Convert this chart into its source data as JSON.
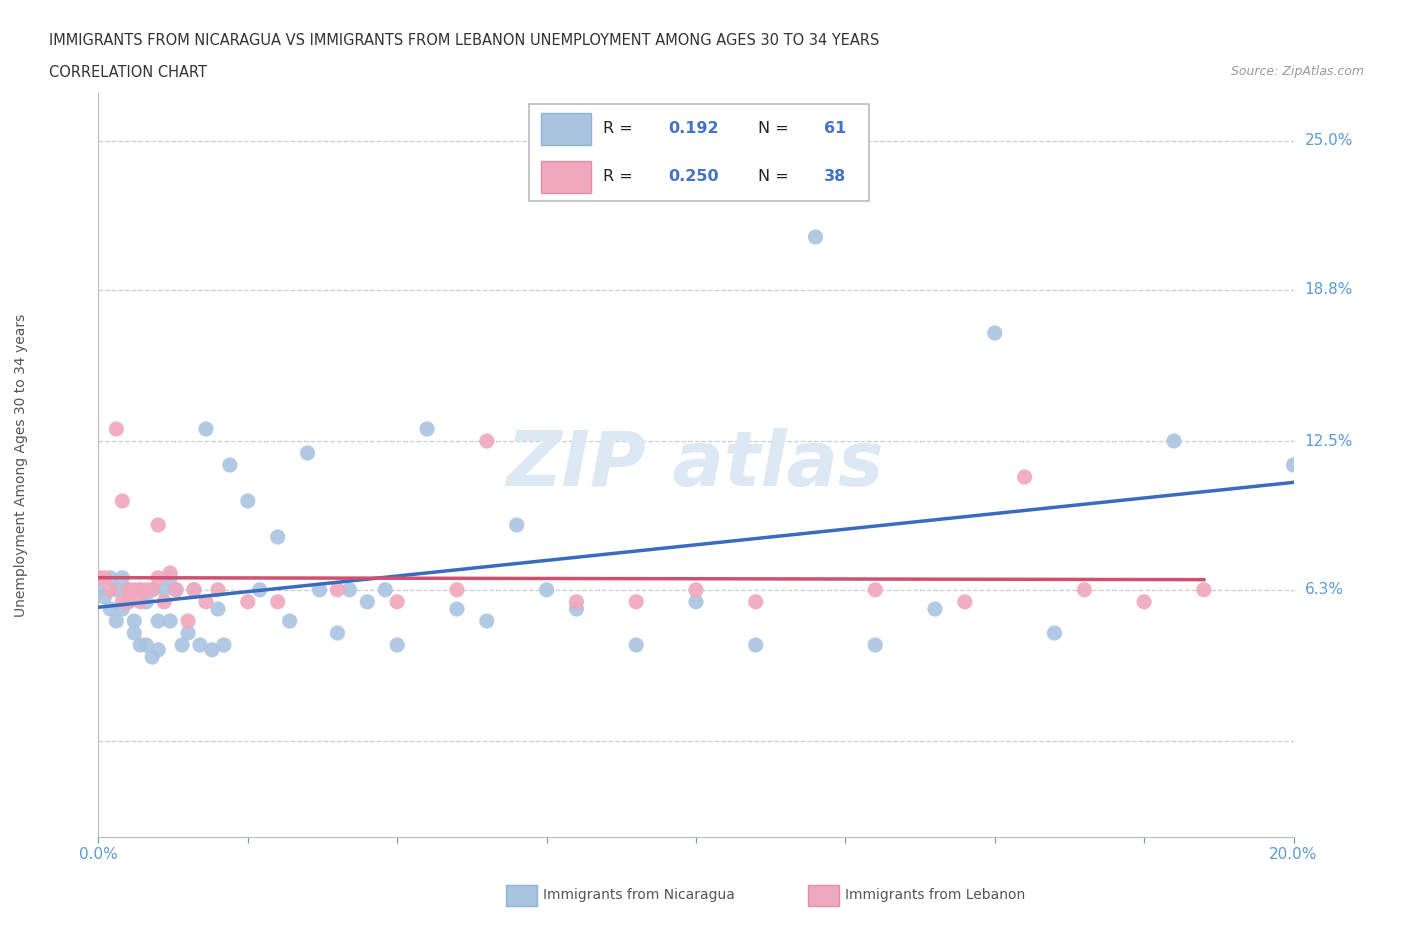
{
  "title_line1": "IMMIGRANTS FROM NICARAGUA VS IMMIGRANTS FROM LEBANON UNEMPLOYMENT AMONG AGES 30 TO 34 YEARS",
  "title_line2": "CORRELATION CHART",
  "source": "Source: ZipAtlas.com",
  "ylabel": "Unemployment Among Ages 30 to 34 years",
  "xlim": [
    0.0,
    0.2
  ],
  "ylim": [
    -0.04,
    0.27
  ],
  "ytick_positions": [
    0.0,
    0.063,
    0.125,
    0.188,
    0.25
  ],
  "ytick_labels": [
    "",
    "6.3%",
    "12.5%",
    "18.8%",
    "25.0%"
  ],
  "grid_color": "#cccccc",
  "nicaragua_color": "#aac4e0",
  "lebanon_color": "#f0a8bc",
  "nicaragua_line_color": "#3a6bbf",
  "lebanon_line_color": "#d05070",
  "nicaragua_R": 0.192,
  "nicaragua_N": 61,
  "lebanon_R": 0.25,
  "lebanon_N": 38,
  "nicaragua_x": [
    0.0,
    0.0,
    0.001,
    0.002,
    0.002,
    0.003,
    0.003,
    0.004,
    0.004,
    0.005,
    0.005,
    0.006,
    0.006,
    0.007,
    0.007,
    0.008,
    0.008,
    0.009,
    0.009,
    0.01,
    0.01,
    0.011,
    0.012,
    0.012,
    0.013,
    0.014,
    0.015,
    0.016,
    0.017,
    0.018,
    0.019,
    0.02,
    0.021,
    0.022,
    0.025,
    0.027,
    0.03,
    0.032,
    0.035,
    0.037,
    0.04,
    0.042,
    0.045,
    0.048,
    0.05,
    0.055,
    0.06,
    0.065,
    0.07,
    0.075,
    0.08,
    0.09,
    0.1,
    0.11,
    0.12,
    0.13,
    0.14,
    0.15,
    0.16,
    0.18,
    0.2
  ],
  "nicaragua_y": [
    0.068,
    0.063,
    0.06,
    0.055,
    0.068,
    0.05,
    0.063,
    0.055,
    0.068,
    0.058,
    0.063,
    0.05,
    0.045,
    0.04,
    0.063,
    0.04,
    0.058,
    0.035,
    0.063,
    0.038,
    0.05,
    0.063,
    0.068,
    0.05,
    0.063,
    0.04,
    0.045,
    0.063,
    0.04,
    0.13,
    0.038,
    0.055,
    0.04,
    0.115,
    0.1,
    0.063,
    0.085,
    0.05,
    0.12,
    0.063,
    0.045,
    0.063,
    0.058,
    0.063,
    0.04,
    0.13,
    0.055,
    0.05,
    0.09,
    0.063,
    0.055,
    0.04,
    0.058,
    0.04,
    0.21,
    0.04,
    0.055,
    0.17,
    0.045,
    0.125,
    0.115
  ],
  "lebanon_x": [
    0.0,
    0.001,
    0.002,
    0.003,
    0.004,
    0.004,
    0.005,
    0.005,
    0.006,
    0.007,
    0.007,
    0.008,
    0.009,
    0.01,
    0.01,
    0.011,
    0.012,
    0.013,
    0.015,
    0.016,
    0.018,
    0.02,
    0.025,
    0.03,
    0.04,
    0.05,
    0.06,
    0.065,
    0.08,
    0.09,
    0.1,
    0.11,
    0.13,
    0.145,
    0.155,
    0.165,
    0.175,
    0.185
  ],
  "lebanon_y": [
    0.068,
    0.068,
    0.063,
    0.13,
    0.058,
    0.1,
    0.063,
    0.058,
    0.063,
    0.058,
    0.063,
    0.063,
    0.063,
    0.09,
    0.068,
    0.058,
    0.07,
    0.063,
    0.05,
    0.063,
    0.058,
    0.063,
    0.058,
    0.058,
    0.063,
    0.058,
    0.063,
    0.125,
    0.058,
    0.058,
    0.063,
    0.058,
    0.063,
    0.058,
    0.11,
    0.063,
    0.058,
    0.063
  ]
}
